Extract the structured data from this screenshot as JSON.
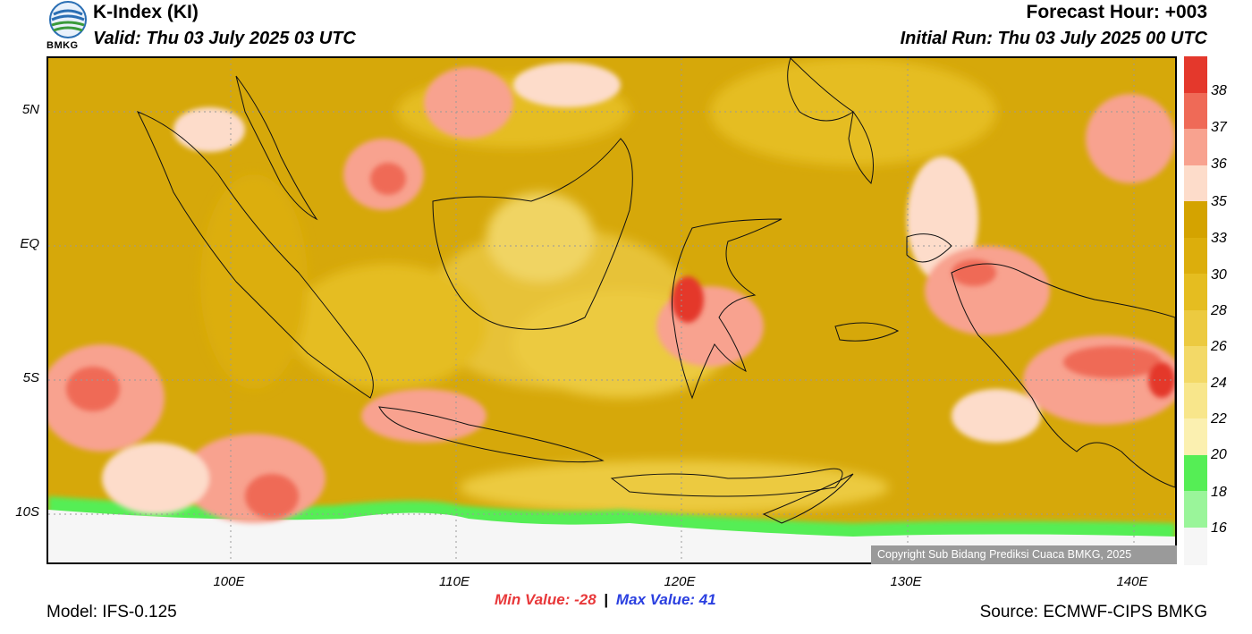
{
  "header": {
    "title": "K-Index (KI)",
    "valid": "Valid: Thu 03 July 2025 03 UTC",
    "forecast_hour": "Forecast Hour: +003",
    "initial_run": "Initial Run: Thu 03 July 2025 00 UTC",
    "logo_text": "BMKG"
  },
  "axes": {
    "lat_labels": [
      "5N",
      "EQ",
      "5S",
      "10S"
    ],
    "lon_labels": [
      "100E",
      "110E",
      "120E",
      "130E",
      "140E"
    ]
  },
  "colorbar": {
    "labels": [
      "38",
      "37",
      "36",
      "35",
      "33",
      "30",
      "28",
      "26",
      "24",
      "22",
      "20",
      "18",
      "16"
    ],
    "colors": [
      "#e4382c",
      "#ef6a57",
      "#f8a28f",
      "#fddcca",
      "#d4a300",
      "#dcae0c",
      "#e5bd20",
      "#ecca40",
      "#f3d967",
      "#f8e68b",
      "#fbf0b0",
      "#55ee55",
      "#9af59a",
      "#f6f6f6"
    ]
  },
  "stats": {
    "min_label": "Min Value: -28",
    "separator": "|",
    "max_label": "Max Value:  41"
  },
  "footer": {
    "model": "Model: IFS-0.125",
    "source": "Source: ECMWF-CIPS BMKG",
    "copyright": "Copyright Sub Bidang Prediksi Cuaca BMKG, 2025"
  },
  "colors": {
    "base_field": "#d6a80a",
    "moderate_field": "#e7c237",
    "light_field": "#f0d463",
    "pink_high": "#f8a28f",
    "red_high": "#e4382c",
    "green_low": "#55ee55",
    "coastline": "#111111",
    "grid": "#999999"
  }
}
